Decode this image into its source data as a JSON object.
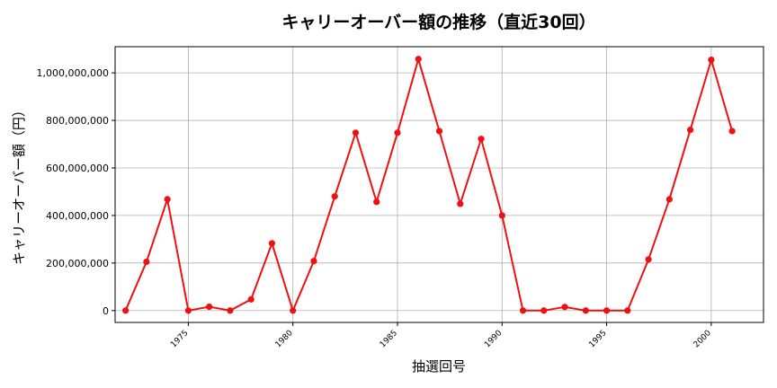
{
  "chart_data": {
    "type": "line",
    "title": "キャリーオーバー額の推移（直近30回）",
    "xlabel": "抽選回号",
    "ylabel": "キャリーオーバー額（円）",
    "xlim": [
      1971.5,
      2002.5
    ],
    "ylim": [
      -50000000,
      1110000000
    ],
    "grid": true,
    "x_ticks": [
      1975,
      1980,
      1985,
      1990,
      1995,
      2000
    ],
    "y_ticks": [
      0,
      200000000,
      400000000,
      600000000,
      800000000,
      1000000000
    ],
    "y_tick_labels": [
      "0",
      "200,000,000",
      "400,000,000",
      "600,000,000",
      "800,000,000",
      "1,000,000,000"
    ],
    "series": [
      {
        "color": "#ee1111",
        "x": [
          1972,
          1973,
          1974,
          1975,
          1976,
          1977,
          1978,
          1979,
          1980,
          1981,
          1982,
          1983,
          1984,
          1985,
          1986,
          1987,
          1988,
          1989,
          1990,
          1991,
          1992,
          1993,
          1994,
          1995,
          1996,
          1997,
          1998,
          1999,
          2000,
          2001
        ],
        "values": [
          0,
          205000000,
          468000000,
          0,
          16000000,
          0,
          47000000,
          283000000,
          0,
          208000000,
          480000000,
          748000000,
          457000000,
          748000000,
          1058000000,
          755000000,
          449000000,
          722000000,
          400000000,
          0,
          0,
          15000000,
          0,
          0,
          0,
          215000000,
          468000000,
          760000000,
          1055000000,
          755000000
        ]
      }
    ]
  }
}
